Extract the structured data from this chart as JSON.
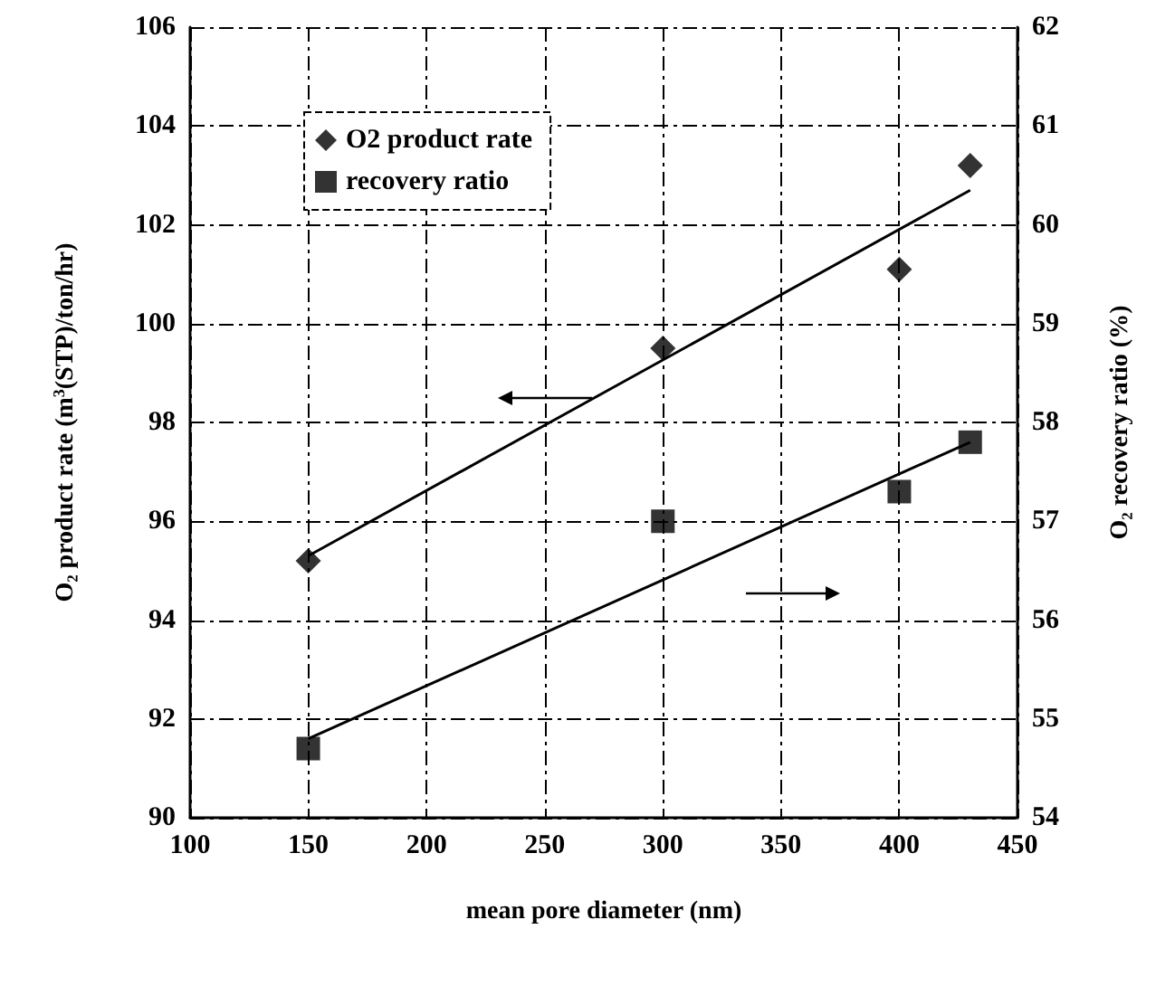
{
  "chart_data": {
    "type": "scatter",
    "xlabel": "mean pore diameter (nm)",
    "ylabel": "O₂ product rate (m$^{3}$(STP)/ton/hr)",
    "y2label": "O₂ recovery ratio (%)",
    "xlim": [
      100,
      450
    ],
    "xticks": [
      100,
      150,
      200,
      250,
      300,
      350,
      400,
      450
    ],
    "ylim": [
      90,
      106
    ],
    "yticks": [
      90,
      92,
      94,
      96,
      98,
      100,
      102,
      104,
      106
    ],
    "y2lim": [
      54,
      62
    ],
    "y2ticks": [
      54,
      55,
      56,
      57,
      58,
      59,
      60,
      61,
      62
    ],
    "grid": true,
    "legend": "top left",
    "series": [
      {
        "name": "O2 product rate",
        "marker": "diamond",
        "color": "#000000",
        "x": [
          150,
          300,
          400,
          430
        ],
        "values": [
          95.2,
          99.5,
          101.1,
          103.2
        ]
      },
      {
        "name": "recovery ratio",
        "marker": "square",
        "color": "#000000",
        "axis": "y2",
        "x": [
          150,
          300,
          400,
          430
        ],
        "values": [
          54.7,
          57.0,
          57.3,
          57.8
        ]
      },
      {
        "type": "line",
        "marker": "none",
        "color": "#000000",
        "x": [
          150,
          430
        ],
        "values": [
          95.3,
          102.7
        ]
      },
      {
        "type": "line",
        "marker": "none",
        "color": "#000000",
        "axis": "y2",
        "x": [
          150,
          430
        ],
        "values": [
          54.8,
          57.8
        ]
      }
    ]
  }
}
